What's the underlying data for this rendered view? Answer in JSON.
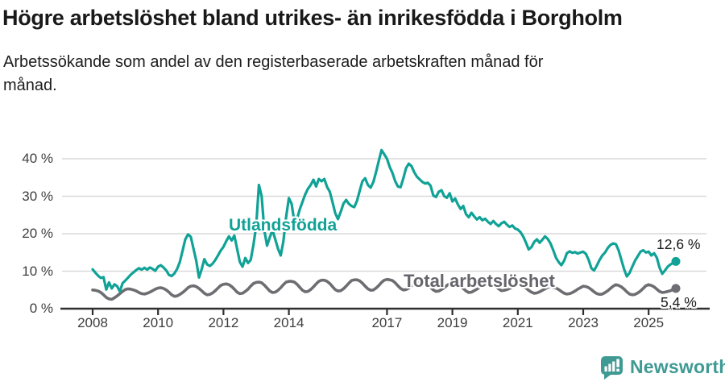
{
  "header": {
    "title": "Högre arbetslöshet bland utrikes- än inrikesfödda i Borgholm",
    "subtitle": "Arbetssökande som andel av den registerbaserade arbetskraften månad för månad.",
    "subtitle_lines": [
      "Arbetssökande som andel av den registerbaserade arbetskraften månad för",
      "månad."
    ]
  },
  "chart_data": {
    "type": "line",
    "x_start": "2008-01",
    "x_end": "2025-11",
    "x_unit": "month",
    "grid": true,
    "legend": "inline-labels",
    "ylim": [
      0,
      44
    ],
    "ytick_values": [
      0,
      10,
      20,
      30,
      40
    ],
    "ytick_labels": [
      "0 %",
      "10 %",
      "20 %",
      "30 %",
      "40 %"
    ],
    "xtick_values": [
      2008,
      2010,
      2012,
      2014,
      2017,
      2019,
      2021,
      2023,
      2025
    ],
    "xtick_labels": [
      "2008",
      "2010",
      "2012",
      "2014",
      "2017",
      "2019",
      "2021",
      "2023",
      "2025"
    ],
    "series": [
      {
        "name": "Utlandsfödda",
        "color": "#10a296",
        "end_label": "12,6 %",
        "end_value": 12.6,
        "values": [
          10.5,
          9.6,
          8.8,
          8.2,
          8.4,
          5.1,
          7.0,
          5.4,
          6.5,
          6.0,
          4.6,
          6.8,
          7.5,
          8.3,
          9.1,
          9.7,
          10.3,
          10.8,
          10.4,
          10.9,
          10.4,
          11.0,
          10.6,
          10.1,
          11.2,
          11.6,
          11.0,
          10.2,
          9.0,
          8.7,
          9.4,
          10.6,
          12.5,
          15.5,
          18.5,
          19.8,
          19.2,
          16.0,
          12.8,
          8.3,
          10.5,
          13.2,
          11.8,
          11.4,
          12.0,
          13.0,
          14.2,
          15.5,
          16.5,
          18.0,
          19.3,
          18.2,
          19.5,
          16.0,
          12.5,
          11.2,
          13.5,
          12.2,
          13.0,
          17.0,
          22.0,
          33.0,
          30.0,
          21.0,
          16.8,
          19.0,
          21.0,
          18.5,
          16.0,
          14.2,
          18.0,
          24.5,
          29.5,
          28.0,
          23.2,
          24.0,
          26.5,
          28.5,
          30.5,
          32.0,
          33.0,
          34.4,
          32.6,
          34.6,
          34.0,
          34.6,
          32.5,
          31.2,
          28.5,
          25.5,
          23.9,
          25.8,
          28.0,
          29.0,
          28.0,
          27.4,
          27.1,
          28.8,
          31.5,
          34.0,
          34.8,
          33.0,
          32.3,
          33.8,
          36.5,
          39.5,
          42.3,
          41.2,
          40.0,
          37.8,
          36.2,
          34.0,
          32.6,
          32.4,
          34.8,
          37.5,
          38.7,
          38.0,
          36.4,
          35.2,
          34.5,
          33.8,
          33.4,
          33.6,
          32.8,
          30.2,
          29.8,
          31.2,
          31.6,
          30.0,
          29.6,
          30.8,
          28.6,
          29.4,
          27.8,
          26.6,
          27.4,
          25.2,
          24.4,
          25.6,
          24.6,
          23.8,
          24.4,
          23.6,
          24.0,
          23.2,
          22.6,
          23.4,
          22.6,
          22.0,
          22.8,
          23.2,
          22.4,
          21.8,
          22.2,
          21.4,
          21.1,
          20.4,
          19.2,
          17.6,
          15.8,
          16.4,
          17.8,
          18.5,
          17.6,
          18.4,
          19.3,
          18.6,
          17.4,
          15.6,
          13.6,
          12.4,
          11.6,
          12.8,
          14.8,
          15.3,
          14.9,
          15.1,
          14.7,
          15.0,
          15.2,
          14.6,
          13.0,
          10.8,
          10.2,
          11.5,
          13.0,
          14.2,
          15.0,
          16.2,
          17.0,
          17.4,
          17.2,
          15.5,
          13.0,
          10.5,
          8.6,
          9.5,
          11.2,
          12.8,
          14.0,
          15.2,
          15.6,
          15.0,
          15.2,
          14.2,
          14.8,
          13.6,
          11.0,
          9.3,
          10.2,
          11.2,
          11.8,
          12.2,
          12.6
        ]
      },
      {
        "name": "Total arbetslöshet",
        "color": "#6d6d72",
        "end_label": "5,4 %",
        "end_value": 5.4,
        "values": [
          5.0,
          4.9,
          4.7,
          4.3,
          3.7,
          3.0,
          2.6,
          2.5,
          2.9,
          3.4,
          4.0,
          4.6,
          5.1,
          5.3,
          5.2,
          5.0,
          4.7,
          4.3,
          4.0,
          3.9,
          4.1,
          4.4,
          4.8,
          5.2,
          5.5,
          5.6,
          5.4,
          5.0,
          4.4,
          3.7,
          3.3,
          3.4,
          3.8,
          4.3,
          4.9,
          5.6,
          6.0,
          6.1,
          5.9,
          5.4,
          4.8,
          4.1,
          3.7,
          3.8,
          4.2,
          4.8,
          5.5,
          6.2,
          6.5,
          6.6,
          6.4,
          5.9,
          5.2,
          4.4,
          4.0,
          4.1,
          4.6,
          5.2,
          6.0,
          6.7,
          7.0,
          7.1,
          6.9,
          6.3,
          5.5,
          4.7,
          4.3,
          4.4,
          4.9,
          5.6,
          6.4,
          7.1,
          7.3,
          7.3,
          7.1,
          6.5,
          5.7,
          4.9,
          4.5,
          4.6,
          5.1,
          5.8,
          6.6,
          7.3,
          7.6,
          7.6,
          7.3,
          6.7,
          5.9,
          5.1,
          4.7,
          4.8,
          5.3,
          6.0,
          6.8,
          7.5,
          7.7,
          7.7,
          7.4,
          6.8,
          6.0,
          5.3,
          4.9,
          5.0,
          5.5,
          6.2,
          7.0,
          7.6,
          7.8,
          7.7,
          7.5,
          6.9,
          6.1,
          5.4,
          5.0,
          5.1,
          5.5,
          6.1,
          6.8,
          7.4,
          7.2,
          7.1,
          6.9,
          6.4,
          5.7,
          5.0,
          4.6,
          4.7,
          5.1,
          5.6,
          6.2,
          6.7,
          6.8,
          6.7,
          6.5,
          6.0,
          5.4,
          4.7,
          4.3,
          4.4,
          4.8,
          5.2,
          5.7,
          6.1,
          6.4,
          6.3,
          6.1,
          6.3,
          5.9,
          5.3,
          4.8,
          4.9,
          5.1,
          5.4,
          5.8,
          6.1,
          6.2,
          6.1,
          5.9,
          5.5,
          4.9,
          4.4,
          4.1,
          4.2,
          4.5,
          4.9,
          5.3,
          5.7,
          5.8,
          5.7,
          5.5,
          5.1,
          4.6,
          4.1,
          3.9,
          4.0,
          4.3,
          4.7,
          5.2,
          5.6,
          6.0,
          5.9,
          5.6,
          5.1,
          4.5,
          4.0,
          3.8,
          3.9,
          4.3,
          4.8,
          5.4,
          6.0,
          6.4,
          6.2,
          5.8,
          5.2,
          4.5,
          3.9,
          3.7,
          3.8,
          4.2,
          4.7,
          5.4,
          6.1,
          6.4,
          6.2,
          5.8,
          5.2,
          4.6,
          4.3,
          4.4,
          4.6,
          4.8,
          5.1,
          5.4
        ]
      }
    ],
    "colors": {
      "grid": "#d9d9d9",
      "axis": "#2f2f2f",
      "tick_text": "#3d3d3d",
      "brand_teal": "#3f9a94"
    }
  },
  "footer": {
    "brand": "Newsworthy"
  }
}
